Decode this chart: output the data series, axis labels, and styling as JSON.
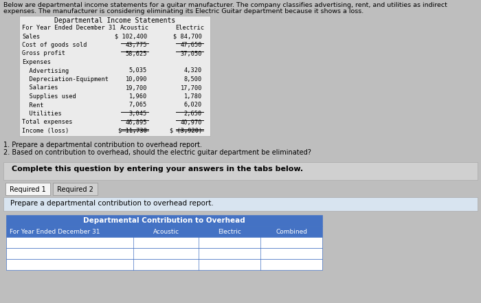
{
  "title_line1": "Below are departmental income statements for a guitar manufacturer. The company classifies advertising, rent, and utilities as indirect",
  "title_line2": "expenses. The manufacturer is considering eliminating its Electric Guitar department because it shows a loss.",
  "table_title": "Departmental Income Statements",
  "table_header_label": "For Year Ended December 31",
  "col_headers": [
    "Acoustic",
    "Electric"
  ],
  "rows": [
    [
      "Sales",
      "$ 102,400",
      "$ 84,700"
    ],
    [
      "Cost of goods sold",
      "43,775",
      "47,650"
    ],
    [
      "Gross profit",
      "58,625",
      "37,050"
    ],
    [
      "Expenses",
      "",
      ""
    ],
    [
      "  Advertising",
      "5,035",
      "4,320"
    ],
    [
      "  Depreciation-Equipment",
      "10,090",
      "8,500"
    ],
    [
      "  Salaries",
      "19,700",
      "17,700"
    ],
    [
      "  Supplies used",
      "1,960",
      "1,780"
    ],
    [
      "  Rent",
      "7,065",
      "6,020"
    ],
    [
      "  Utilities",
      "3,045",
      "2,650"
    ],
    [
      "Total expenses",
      "46,895",
      "40,970"
    ],
    [
      "Income (loss)",
      "$ 11,730",
      "$ (3,920)"
    ]
  ],
  "underline_after": [
    1,
    2,
    9,
    10,
    11
  ],
  "double_underline_after": [
    11
  ],
  "questions": [
    "1. Prepare a departmental contribution to overhead report.",
    "2. Based on contribution to overhead, should the electric guitar department be eliminated?"
  ],
  "complete_text": "Complete this question by entering your answers in the tabs below.",
  "tab1": "Required 1",
  "tab2": "Required 2",
  "prepare_text": "Prepare a departmental contribution to overhead report.",
  "bottom_title": "Departmental Contribution to Overhead",
  "bottom_header": "For Year Ended December 31",
  "bottom_cols": [
    "Acoustic",
    "Electric",
    "Combined"
  ],
  "bg_outer": "#bebebe",
  "bg_table": "#ebebeb",
  "bg_complete": "#d0d0d0",
  "bg_tab_active": "#f5f5f5",
  "bg_tab_inactive": "#d0d0d0",
  "bg_prepare": "#d8e4f0",
  "bg_blue_header": "#4472c4",
  "bg_bottom_row": "#ffffff",
  "border_blue": "#4472c4",
  "text_black": "#000000",
  "text_white": "#ffffff"
}
